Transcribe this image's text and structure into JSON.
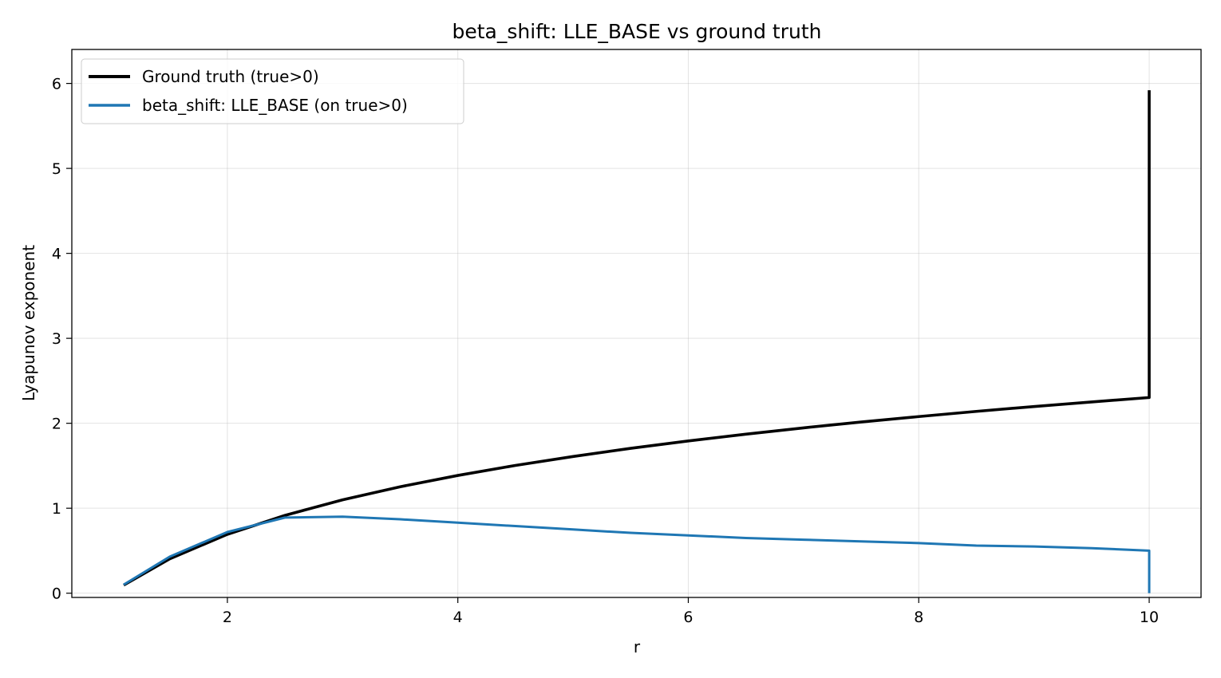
{
  "chart_data": {
    "type": "line",
    "title": "beta_shift: LLE_BASE vs ground truth",
    "xlabel": "r",
    "ylabel": "Lyapunov exponent",
    "xlim": [
      0.65,
      10.45
    ],
    "ylim": [
      -0.05,
      6.4
    ],
    "xticks": [
      2,
      4,
      6,
      8,
      10
    ],
    "yticks": [
      0,
      1,
      2,
      3,
      4,
      5,
      6
    ],
    "grid": true,
    "legend_position": "upper-left",
    "series": [
      {
        "name": "Ground truth (true>0)",
        "color": "#000000",
        "x": [
          1.1,
          1.5,
          2.0,
          2.5,
          3.0,
          3.5,
          4.0,
          4.5,
          5.0,
          5.5,
          6.0,
          6.5,
          7.0,
          7.5,
          8.0,
          8.5,
          9.0,
          9.5,
          10.0,
          10.0
        ],
        "y": [
          0.095,
          0.405,
          0.693,
          0.916,
          1.099,
          1.253,
          1.386,
          1.504,
          1.609,
          1.705,
          1.792,
          1.872,
          1.946,
          2.015,
          2.079,
          2.14,
          2.197,
          2.251,
          2.303,
          5.92
        ]
      },
      {
        "name": "beta_shift: LLE_BASE (on true>0)",
        "color": "#1f77b4",
        "x": [
          1.1,
          1.5,
          2.0,
          2.5,
          3.0,
          3.5,
          4.0,
          4.5,
          5.0,
          5.5,
          6.0,
          6.5,
          7.0,
          7.5,
          8.0,
          8.5,
          9.0,
          9.5,
          10.0,
          10.0
        ],
        "y": [
          0.1,
          0.43,
          0.72,
          0.89,
          0.9,
          0.87,
          0.83,
          0.79,
          0.75,
          0.71,
          0.68,
          0.65,
          0.63,
          0.61,
          0.59,
          0.56,
          0.55,
          0.53,
          0.5,
          0.0
        ]
      }
    ]
  }
}
